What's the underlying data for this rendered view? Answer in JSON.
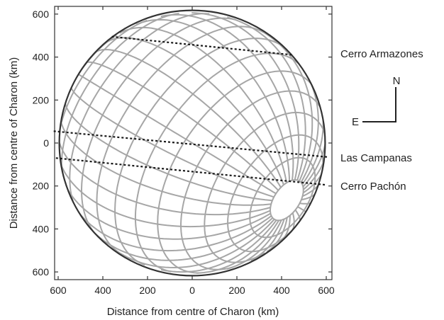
{
  "chart_data": {
    "type": "scatter",
    "xlabel": "Distance from centre of Charon (km)",
    "ylabel": "Distance from centre of Charon (km)",
    "xlim": [
      -640,
      640
    ],
    "ylim": [
      -640,
      640
    ],
    "x_ticks": [
      -600,
      -400,
      -200,
      0,
      200,
      400,
      600
    ],
    "x_tick_labels": [
      "600",
      "400",
      "200",
      "0",
      "200",
      "400",
      "600"
    ],
    "y_ticks": [
      600,
      400,
      200,
      0,
      -200,
      -400,
      -600
    ],
    "y_tick_labels": [
      "600",
      "400",
      "200",
      "0",
      "200",
      "400",
      "600"
    ],
    "grid": false,
    "body": {
      "shape": "sphere",
      "radius_km": 606,
      "pole_x_km": 430,
      "pole_y_km": -270
    },
    "chords": [
      {
        "name": "Cerro Armazones",
        "x": [
          -360,
          450
        ],
        "y": [
          495,
          410
        ]
      },
      {
        "name": "Las Campanas",
        "x": [
          -620,
          605
        ],
        "y": [
          55,
          -65
        ]
      },
      {
        "name": "Cerro Pachón",
        "x": [
          -610,
          600
        ],
        "y": [
          -70,
          -195
        ]
      }
    ],
    "compass": {
      "north": "N",
      "east": "E"
    }
  }
}
